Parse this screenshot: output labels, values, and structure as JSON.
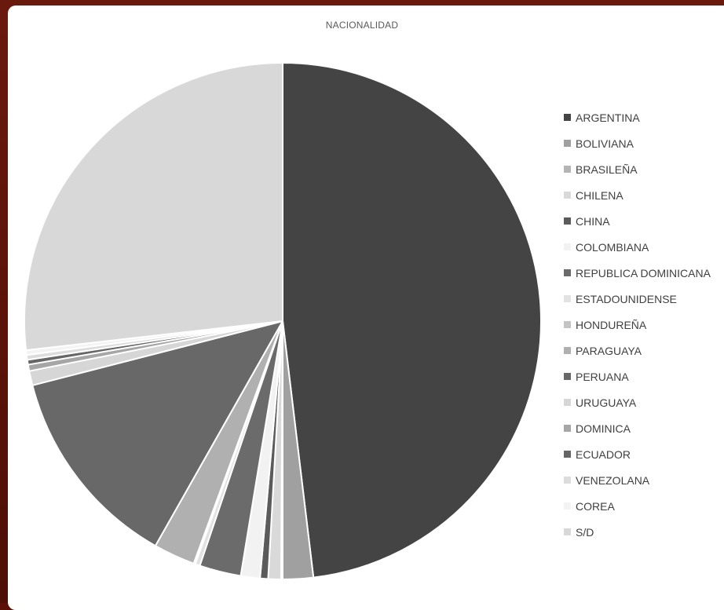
{
  "chart_data": {
    "type": "pie",
    "title": "NACIONALIDAD",
    "legend_position": "right",
    "series": [
      {
        "name": "ARGENTINA",
        "value": 48.1,
        "color": "#444444"
      },
      {
        "name": "BOLIVIANA",
        "value": 1.9,
        "color": "#a0a0a0"
      },
      {
        "name": "BRASILEÑA",
        "value": 0.1,
        "color": "#b4b4b4"
      },
      {
        "name": "CHILENA",
        "value": 0.8,
        "color": "#d9d9d9"
      },
      {
        "name": "CHINA",
        "value": 0.5,
        "color": "#5b5b5b"
      },
      {
        "name": "COLOMBIANA",
        "value": 1.2,
        "color": "#f2f2f2"
      },
      {
        "name": "REPUBLICA DOMINICANA",
        "value": 2.6,
        "color": "#6b6b6b"
      },
      {
        "name": "ESTADOUNIDENSE",
        "value": 0.3,
        "color": "#e2e2e2"
      },
      {
        "name": "HONDUREÑA",
        "value": 0.1,
        "color": "#c4c4c4"
      },
      {
        "name": "PARAGUAYA",
        "value": 2.6,
        "color": "#b0b0b0"
      },
      {
        "name": "PERUANA",
        "value": 12.8,
        "color": "#686868"
      },
      {
        "name": "URUGUAYA",
        "value": 0.9,
        "color": "#d6d6d6"
      },
      {
        "name": "DOMINICA",
        "value": 0.4,
        "color": "#a6a6a6"
      },
      {
        "name": "ECUADOR",
        "value": 0.3,
        "color": "#666666"
      },
      {
        "name": "VENEZOLANA",
        "value": 0.3,
        "color": "#dcdcdc"
      },
      {
        "name": "COREA",
        "value": 0.3,
        "color": "#f3f3f3"
      },
      {
        "name": "S/D",
        "value": 26.8,
        "color": "#d8d8d8"
      }
    ]
  }
}
